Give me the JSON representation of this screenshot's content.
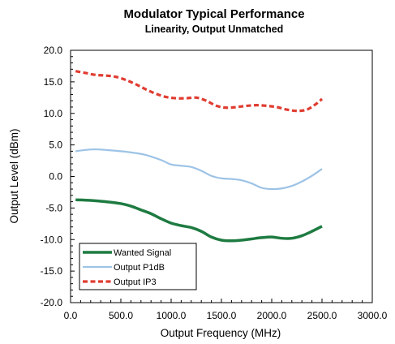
{
  "chart_data": {
    "type": "line",
    "title": "Modulator Typical Performance",
    "subtitle": "Linearity, Output Unmatched",
    "xlabel": "Output Frequency (MHz)",
    "ylabel": "Output Level (dBm)",
    "xlim": [
      0,
      3000
    ],
    "ylim": [
      -20,
      20
    ],
    "x_ticks": [
      "0.0",
      "500.0",
      "1000.0",
      "1500.0",
      "2000.0",
      "2500.0",
      "3000.0"
    ],
    "y_ticks": [
      "20.0",
      "15.0",
      "10.0",
      "5.0",
      "0.0",
      "-5.0",
      "-10.0",
      "-15.0",
      "-20.0"
    ],
    "grid": false,
    "legend_position": "bottom-left",
    "series": [
      {
        "name": "Wanted Signal",
        "color": "#1e7b41",
        "style": "solid",
        "x": [
          50,
          200,
          350,
          500,
          600,
          700,
          800,
          900,
          1000,
          1100,
          1200,
          1300,
          1400,
          1500,
          1600,
          1700,
          1800,
          1900,
          2000,
          2100,
          2200,
          2300,
          2400,
          2500
        ],
        "y": [
          -3.7,
          -3.8,
          -4.0,
          -4.3,
          -4.7,
          -5.3,
          -5.9,
          -6.7,
          -7.4,
          -7.8,
          -8.1,
          -8.7,
          -9.6,
          -10.1,
          -10.2,
          -10.1,
          -9.9,
          -9.7,
          -9.6,
          -9.8,
          -9.8,
          -9.4,
          -8.7,
          -7.9
        ]
      },
      {
        "name": "Output P1dB",
        "color": "#9dc3e6",
        "style": "solid",
        "x": [
          50,
          150,
          250,
          350,
          500,
          650,
          750,
          900,
          1000,
          1100,
          1200,
          1300,
          1400,
          1500,
          1600,
          1700,
          1800,
          1900,
          2000,
          2100,
          2200,
          2300,
          2400,
          2500
        ],
        "y": [
          4.0,
          4.2,
          4.3,
          4.2,
          4.0,
          3.7,
          3.4,
          2.6,
          1.9,
          1.7,
          1.5,
          0.9,
          0.1,
          -0.3,
          -0.4,
          -0.6,
          -1.1,
          -1.8,
          -2.0,
          -1.9,
          -1.5,
          -0.8,
          0.1,
          1.2
        ]
      },
      {
        "name": "Output IP3",
        "color": "#e03c31",
        "style": "dashed",
        "x": [
          50,
          150,
          250,
          350,
          450,
          550,
          650,
          750,
          850,
          950,
          1050,
          1150,
          1250,
          1350,
          1450,
          1550,
          1650,
          1750,
          1850,
          1950,
          2050,
          2150,
          2250,
          2350,
          2450,
          2500
        ],
        "y": [
          16.7,
          16.4,
          16.1,
          16.0,
          15.8,
          15.3,
          14.6,
          13.8,
          13.1,
          12.6,
          12.4,
          12.4,
          12.5,
          12.0,
          11.2,
          10.9,
          11.0,
          11.2,
          11.3,
          11.2,
          11.0,
          10.6,
          10.4,
          10.6,
          11.6,
          12.3
        ]
      }
    ]
  }
}
